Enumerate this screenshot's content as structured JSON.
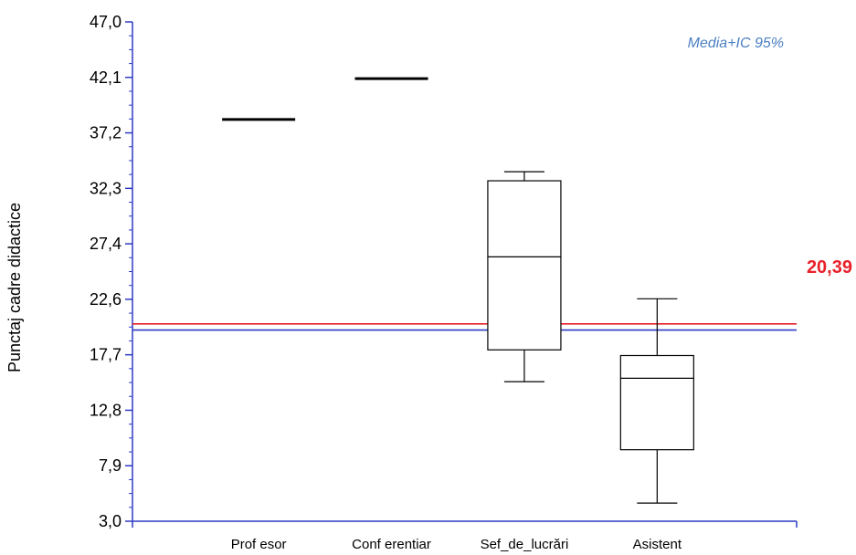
{
  "chart_data": {
    "type": "box",
    "ylabel": "Punctaj cadre didactice",
    "xlabel": "",
    "ylim": [
      3.0,
      47.0
    ],
    "yticks": [
      "3,0",
      "7,9",
      "12,8",
      "17,7",
      "22,6",
      "27,4",
      "32,3",
      "37,2",
      "42,1",
      "47,0"
    ],
    "categories": [
      "Prof esor",
      "Conf erentiar",
      "Sef_de_lucrări",
      "Asistent"
    ],
    "boxes": [
      {
        "name": "Prof esor",
        "min": 38.4,
        "q1": 38.4,
        "median": 38.4,
        "q3": 38.4,
        "max": 38.4
      },
      {
        "name": "Conf erentiar",
        "min": 42.0,
        "q1": 42.0,
        "median": 42.0,
        "q3": 42.0,
        "max": 42.0
      },
      {
        "name": "Sef_de_lucrări",
        "min": 15.3,
        "q1": 18.1,
        "median": 26.3,
        "q3": 33.0,
        "max": 33.8
      },
      {
        "name": "Asistent",
        "min": 4.6,
        "q1": 9.3,
        "median": 15.6,
        "q3": 17.6,
        "max": 22.6
      }
    ],
    "reference_lines": [
      {
        "label": "20,39",
        "value": 20.39,
        "color": "#e8202a"
      },
      {
        "value": 19.85,
        "color": "#2e3cc4"
      }
    ],
    "annotation": "Media+IC 95%",
    "grid": false
  },
  "colors": {
    "axis": "#2e3cc4",
    "annotation": "#4a7fc1",
    "reference": "#e8202a",
    "box": "#000000"
  }
}
